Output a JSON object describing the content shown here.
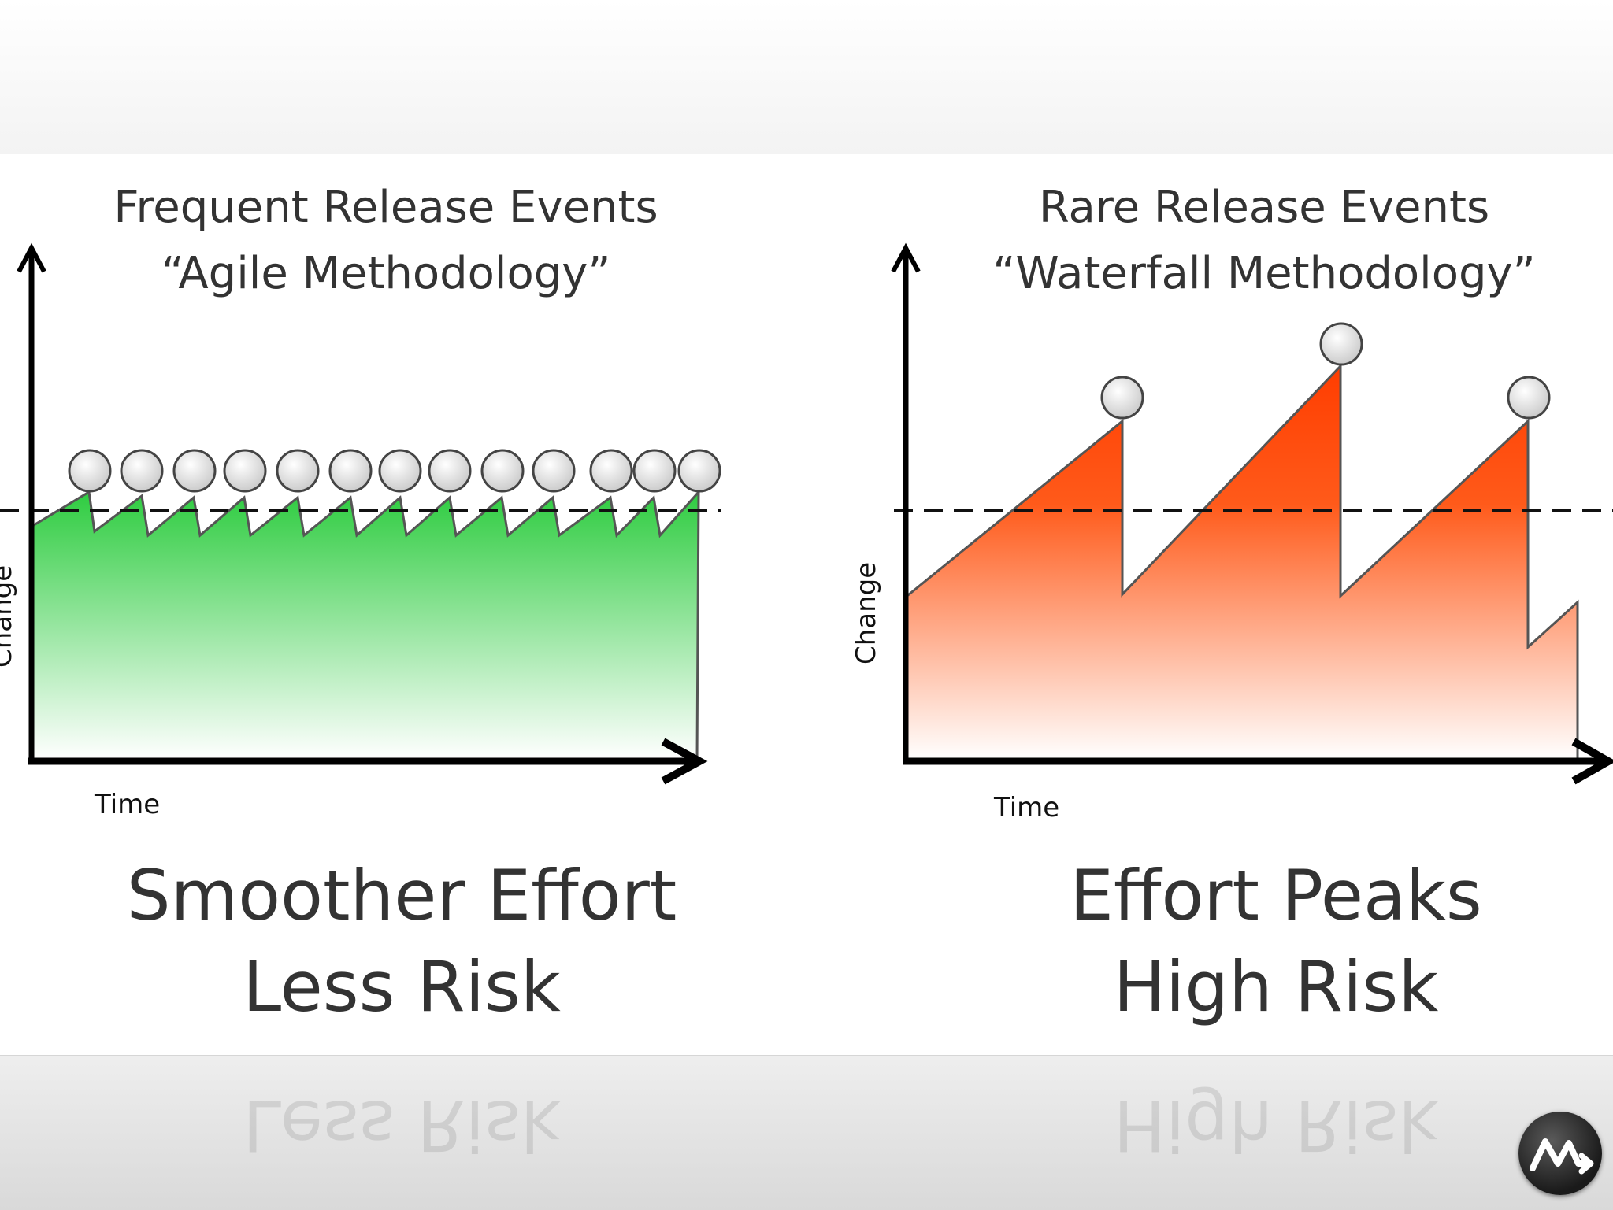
{
  "left_panel": {
    "title_line1": "Frequent Release Events",
    "title_line2": "“Agile Methodology”",
    "x_axis_label": "Time",
    "y_axis_label": "Change",
    "caption_line1": "Smoother Effort",
    "caption_line2": "Less Risk",
    "release_events": 13,
    "fill_color": "#2ecc40"
  },
  "right_panel": {
    "title_line1": "Rare Release Events",
    "title_line2": "“Waterfall Methodology”",
    "x_axis_label": "Time",
    "y_axis_label": "Change",
    "caption_line1": "Effort Peaks",
    "caption_line2": "High Risk",
    "release_events": 3,
    "fill_color": "#ff3d00"
  },
  "logo": {
    "icon": "brand-logo-icon"
  }
}
